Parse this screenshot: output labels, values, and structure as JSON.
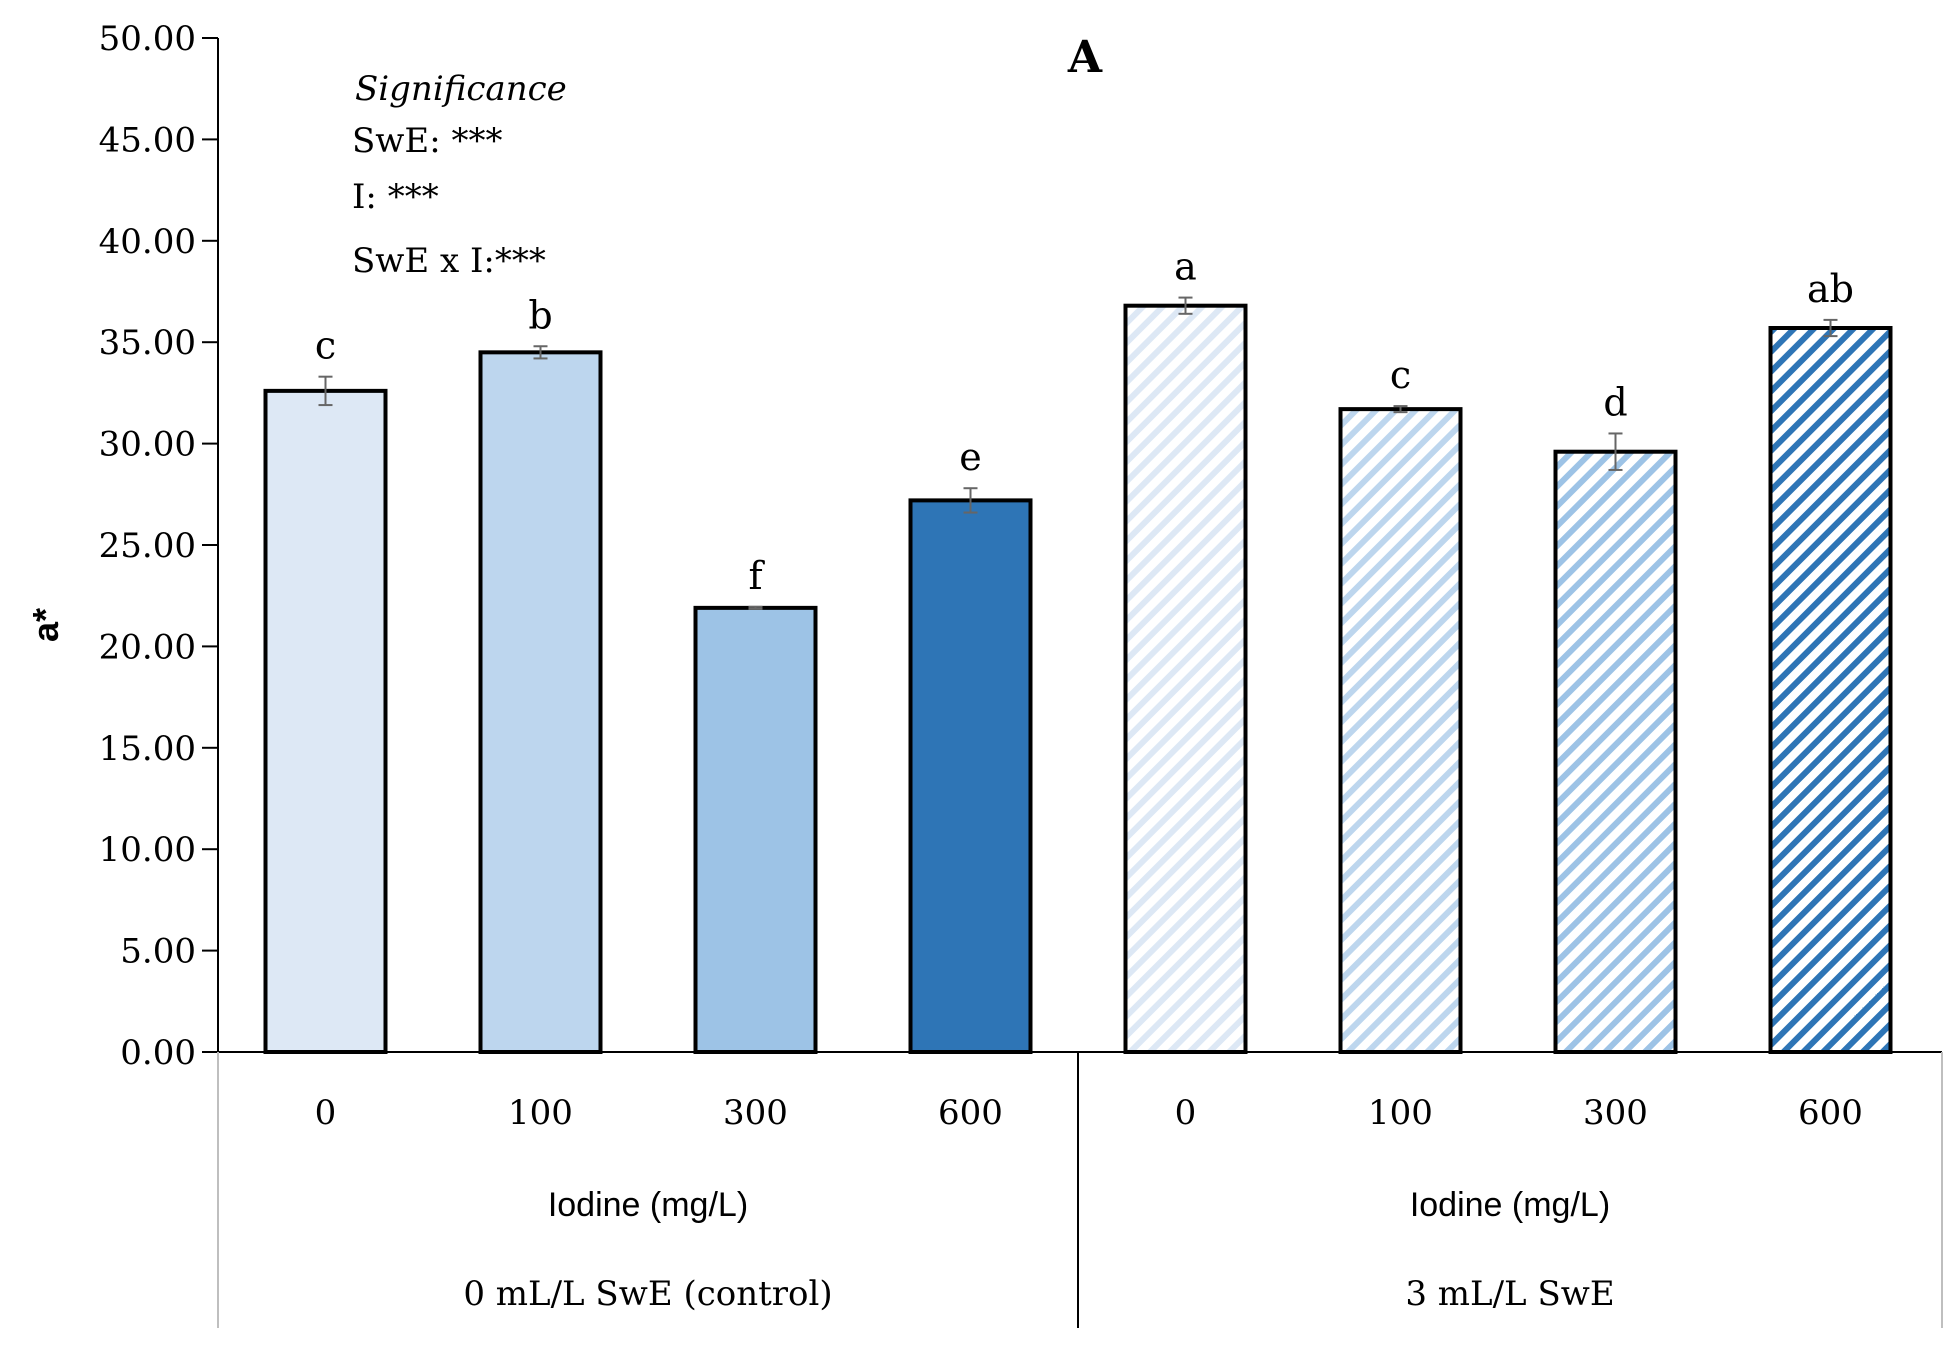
{
  "chart_data": {
    "type": "bar",
    "title": "A",
    "ylabel": "a*",
    "ylim": [
      0,
      50
    ],
    "ytick_step": 5,
    "ytick_decimals": 2,
    "groups": [
      {
        "name": "0 mL/L SwE (control)",
        "xlabel": "Iodine (mg/L)",
        "categories": [
          "0",
          "100",
          "300",
          "600"
        ],
        "values": [
          32.6,
          34.5,
          21.9,
          27.2
        ],
        "errors": [
          0.7,
          0.3,
          0.05,
          0.6
        ],
        "letters": [
          "c",
          "b",
          "f",
          "e"
        ],
        "colors": [
          "#dde8f5",
          "#bdd6ee",
          "#9dc3e6",
          "#2e75b6"
        ],
        "hatched": false
      },
      {
        "name": "3 mL/L SwE",
        "xlabel": "Iodine (mg/L)",
        "categories": [
          "0",
          "100",
          "300",
          "600"
        ],
        "values": [
          36.8,
          31.7,
          29.6,
          35.7
        ],
        "errors": [
          0.4,
          0.15,
          0.9,
          0.4
        ],
        "letters": [
          "a",
          "c",
          "d",
          "ab"
        ],
        "colors": [
          "#dde8f5",
          "#bdd6ee",
          "#9dc3e6",
          "#2e75b6"
        ],
        "hatched": true
      }
    ],
    "annotation": {
      "heading": "Significance",
      "lines": [
        "SwE: ***",
        "I: ***",
        "SwE x I:***"
      ]
    }
  }
}
